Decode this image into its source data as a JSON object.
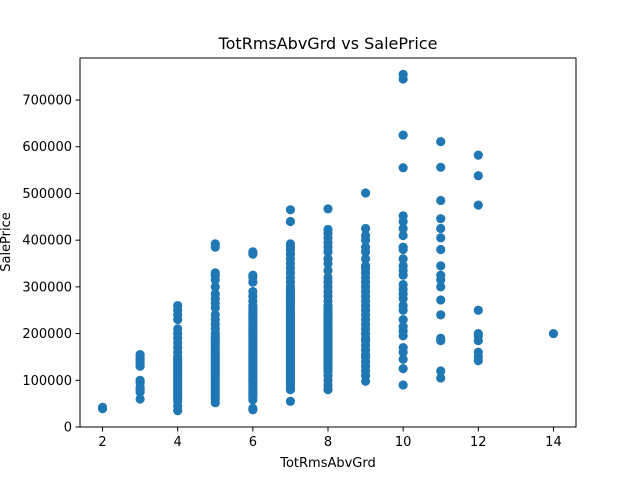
{
  "chart_data": {
    "type": "scatter",
    "title": "TotRmsAbvGrd vs SalePrice",
    "xlabel": "TotRmsAbvGrd",
    "ylabel": "SalePrice",
    "xlim": [
      1.4,
      14.6
    ],
    "ylim": [
      0,
      790000
    ],
    "xticks": [
      2,
      4,
      6,
      8,
      10,
      12,
      14
    ],
    "yticks": [
      0,
      100000,
      200000,
      300000,
      400000,
      500000,
      600000,
      700000
    ],
    "grid": false,
    "marker_color": "#1f77b4",
    "points": [
      [
        2,
        39300
      ],
      [
        2,
        42000
      ],
      [
        3,
        60000
      ],
      [
        3,
        75000
      ],
      [
        3,
        80000
      ],
      [
        3,
        85000
      ],
      [
        3,
        95000
      ],
      [
        3,
        100000
      ],
      [
        3,
        130000
      ],
      [
        3,
        135000
      ],
      [
        3,
        140000
      ],
      [
        3,
        145000
      ],
      [
        3,
        150000
      ],
      [
        3,
        155000
      ],
      [
        4,
        35000
      ],
      [
        4,
        45000
      ],
      [
        4,
        55000
      ],
      [
        4,
        60000
      ],
      [
        4,
        65000
      ],
      [
        4,
        70000
      ],
      [
        4,
        75000
      ],
      [
        4,
        80000
      ],
      [
        4,
        85000
      ],
      [
        4,
        90000
      ],
      [
        4,
        95000
      ],
      [
        4,
        100000
      ],
      [
        4,
        105000
      ],
      [
        4,
        110000
      ],
      [
        4,
        115000
      ],
      [
        4,
        120000
      ],
      [
        4,
        125000
      ],
      [
        4,
        130000
      ],
      [
        4,
        135000
      ],
      [
        4,
        140000
      ],
      [
        4,
        145000
      ],
      [
        4,
        150000
      ],
      [
        4,
        160000
      ],
      [
        4,
        170000
      ],
      [
        4,
        180000
      ],
      [
        4,
        190000
      ],
      [
        4,
        200000
      ],
      [
        4,
        210000
      ],
      [
        4,
        230000
      ],
      [
        4,
        240000
      ],
      [
        4,
        250000
      ],
      [
        4,
        260000
      ],
      [
        5,
        52000
      ],
      [
        5,
        60000
      ],
      [
        5,
        65000
      ],
      [
        5,
        70000
      ],
      [
        5,
        75000
      ],
      [
        5,
        80000
      ],
      [
        5,
        85000
      ],
      [
        5,
        90000
      ],
      [
        5,
        95000
      ],
      [
        5,
        100000
      ],
      [
        5,
        105000
      ],
      [
        5,
        110000
      ],
      [
        5,
        115000
      ],
      [
        5,
        120000
      ],
      [
        5,
        125000
      ],
      [
        5,
        130000
      ],
      [
        5,
        135000
      ],
      [
        5,
        140000
      ],
      [
        5,
        145000
      ],
      [
        5,
        150000
      ],
      [
        5,
        155000
      ],
      [
        5,
        160000
      ],
      [
        5,
        165000
      ],
      [
        5,
        170000
      ],
      [
        5,
        175000
      ],
      [
        5,
        180000
      ],
      [
        5,
        185000
      ],
      [
        5,
        190000
      ],
      [
        5,
        195000
      ],
      [
        5,
        200000
      ],
      [
        5,
        210000
      ],
      [
        5,
        220000
      ],
      [
        5,
        230000
      ],
      [
        5,
        240000
      ],
      [
        5,
        255000
      ],
      [
        5,
        265000
      ],
      [
        5,
        275000
      ],
      [
        5,
        285000
      ],
      [
        5,
        300000
      ],
      [
        5,
        315000
      ],
      [
        5,
        325000
      ],
      [
        5,
        330000
      ],
      [
        5,
        385000
      ],
      [
        5,
        392000
      ],
      [
        6,
        37000
      ],
      [
        6,
        40000
      ],
      [
        6,
        58000
      ],
      [
        6,
        65000
      ],
      [
        6,
        70000
      ],
      [
        6,
        75000
      ],
      [
        6,
        80000
      ],
      [
        6,
        85000
      ],
      [
        6,
        90000
      ],
      [
        6,
        95000
      ],
      [
        6,
        100000
      ],
      [
        6,
        105000
      ],
      [
        6,
        110000
      ],
      [
        6,
        115000
      ],
      [
        6,
        120000
      ],
      [
        6,
        125000
      ],
      [
        6,
        130000
      ],
      [
        6,
        135000
      ],
      [
        6,
        140000
      ],
      [
        6,
        145000
      ],
      [
        6,
        150000
      ],
      [
        6,
        155000
      ],
      [
        6,
        160000
      ],
      [
        6,
        165000
      ],
      [
        6,
        170000
      ],
      [
        6,
        175000
      ],
      [
        6,
        180000
      ],
      [
        6,
        185000
      ],
      [
        6,
        190000
      ],
      [
        6,
        195000
      ],
      [
        6,
        200000
      ],
      [
        6,
        205000
      ],
      [
        6,
        210000
      ],
      [
        6,
        215000
      ],
      [
        6,
        220000
      ],
      [
        6,
        225000
      ],
      [
        6,
        230000
      ],
      [
        6,
        235000
      ],
      [
        6,
        240000
      ],
      [
        6,
        245000
      ],
      [
        6,
        250000
      ],
      [
        6,
        255000
      ],
      [
        6,
        260000
      ],
      [
        6,
        270000
      ],
      [
        6,
        280000
      ],
      [
        6,
        290000
      ],
      [
        6,
        310000
      ],
      [
        6,
        320000
      ],
      [
        6,
        325000
      ],
      [
        6,
        370000
      ],
      [
        6,
        375000
      ],
      [
        7,
        55000
      ],
      [
        7,
        80000
      ],
      [
        7,
        85000
      ],
      [
        7,
        90000
      ],
      [
        7,
        95000
      ],
      [
        7,
        100000
      ],
      [
        7,
        105000
      ],
      [
        7,
        110000
      ],
      [
        7,
        115000
      ],
      [
        7,
        120000
      ],
      [
        7,
        125000
      ],
      [
        7,
        130000
      ],
      [
        7,
        135000
      ],
      [
        7,
        140000
      ],
      [
        7,
        145000
      ],
      [
        7,
        150000
      ],
      [
        7,
        155000
      ],
      [
        7,
        160000
      ],
      [
        7,
        165000
      ],
      [
        7,
        170000
      ],
      [
        7,
        175000
      ],
      [
        7,
        180000
      ],
      [
        7,
        185000
      ],
      [
        7,
        190000
      ],
      [
        7,
        195000
      ],
      [
        7,
        200000
      ],
      [
        7,
        205000
      ],
      [
        7,
        210000
      ],
      [
        7,
        215000
      ],
      [
        7,
        220000
      ],
      [
        7,
        225000
      ],
      [
        7,
        230000
      ],
      [
        7,
        235000
      ],
      [
        7,
        240000
      ],
      [
        7,
        245000
      ],
      [
        7,
        250000
      ],
      [
        7,
        255000
      ],
      [
        7,
        260000
      ],
      [
        7,
        265000
      ],
      [
        7,
        270000
      ],
      [
        7,
        275000
      ],
      [
        7,
        280000
      ],
      [
        7,
        285000
      ],
      [
        7,
        290000
      ],
      [
        7,
        295000
      ],
      [
        7,
        300000
      ],
      [
        7,
        310000
      ],
      [
        7,
        320000
      ],
      [
        7,
        330000
      ],
      [
        7,
        340000
      ],
      [
        7,
        350000
      ],
      [
        7,
        360000
      ],
      [
        7,
        370000
      ],
      [
        7,
        380000
      ],
      [
        7,
        385000
      ],
      [
        7,
        392000
      ],
      [
        7,
        440000
      ],
      [
        7,
        465000
      ],
      [
        8,
        80000
      ],
      [
        8,
        90000
      ],
      [
        8,
        100000
      ],
      [
        8,
        110000
      ],
      [
        8,
        120000
      ],
      [
        8,
        125000
      ],
      [
        8,
        130000
      ],
      [
        8,
        135000
      ],
      [
        8,
        140000
      ],
      [
        8,
        145000
      ],
      [
        8,
        150000
      ],
      [
        8,
        155000
      ],
      [
        8,
        160000
      ],
      [
        8,
        165000
      ],
      [
        8,
        170000
      ],
      [
        8,
        175000
      ],
      [
        8,
        180000
      ],
      [
        8,
        185000
      ],
      [
        8,
        190000
      ],
      [
        8,
        195000
      ],
      [
        8,
        200000
      ],
      [
        8,
        205000
      ],
      [
        8,
        210000
      ],
      [
        8,
        215000
      ],
      [
        8,
        220000
      ],
      [
        8,
        225000
      ],
      [
        8,
        230000
      ],
      [
        8,
        235000
      ],
      [
        8,
        240000
      ],
      [
        8,
        245000
      ],
      [
        8,
        250000
      ],
      [
        8,
        255000
      ],
      [
        8,
        260000
      ],
      [
        8,
        270000
      ],
      [
        8,
        280000
      ],
      [
        8,
        290000
      ],
      [
        8,
        300000
      ],
      [
        8,
        310000
      ],
      [
        8,
        320000
      ],
      [
        8,
        335000
      ],
      [
        8,
        350000
      ],
      [
        8,
        360000
      ],
      [
        8,
        375000
      ],
      [
        8,
        385000
      ],
      [
        8,
        395000
      ],
      [
        8,
        405000
      ],
      [
        8,
        415000
      ],
      [
        8,
        423000
      ],
      [
        8,
        467000
      ],
      [
        9,
        98000
      ],
      [
        9,
        110000
      ],
      [
        9,
        120000
      ],
      [
        9,
        130000
      ],
      [
        9,
        140000
      ],
      [
        9,
        150000
      ],
      [
        9,
        155000
      ],
      [
        9,
        165000
      ],
      [
        9,
        175000
      ],
      [
        9,
        185000
      ],
      [
        9,
        190000
      ],
      [
        9,
        200000
      ],
      [
        9,
        210000
      ],
      [
        9,
        220000
      ],
      [
        9,
        230000
      ],
      [
        9,
        240000
      ],
      [
        9,
        250000
      ],
      [
        9,
        260000
      ],
      [
        9,
        270000
      ],
      [
        9,
        280000
      ],
      [
        9,
        290000
      ],
      [
        9,
        300000
      ],
      [
        9,
        310000
      ],
      [
        9,
        320000
      ],
      [
        9,
        330000
      ],
      [
        9,
        340000
      ],
      [
        9,
        345000
      ],
      [
        9,
        360000
      ],
      [
        9,
        375000
      ],
      [
        9,
        385000
      ],
      [
        9,
        400000
      ],
      [
        9,
        410000
      ],
      [
        9,
        425000
      ],
      [
        9,
        501000
      ],
      [
        10,
        90000
      ],
      [
        10,
        125000
      ],
      [
        10,
        145000
      ],
      [
        10,
        160000
      ],
      [
        10,
        170000
      ],
      [
        10,
        195000
      ],
      [
        10,
        205000
      ],
      [
        10,
        215000
      ],
      [
        10,
        230000
      ],
      [
        10,
        250000
      ],
      [
        10,
        260000
      ],
      [
        10,
        275000
      ],
      [
        10,
        285000
      ],
      [
        10,
        295000
      ],
      [
        10,
        305000
      ],
      [
        10,
        325000
      ],
      [
        10,
        335000
      ],
      [
        10,
        345000
      ],
      [
        10,
        360000
      ],
      [
        10,
        380000
      ],
      [
        10,
        385000
      ],
      [
        10,
        410000
      ],
      [
        10,
        425000
      ],
      [
        10,
        440000
      ],
      [
        10,
        452000
      ],
      [
        10,
        555000
      ],
      [
        10,
        625000
      ],
      [
        10,
        745000
      ],
      [
        10,
        755000
      ],
      [
        11,
        105000
      ],
      [
        11,
        120000
      ],
      [
        11,
        185000
      ],
      [
        11,
        190000
      ],
      [
        11,
        240000
      ],
      [
        11,
        272000
      ],
      [
        11,
        300000
      ],
      [
        11,
        315000
      ],
      [
        11,
        325000
      ],
      [
        11,
        345000
      ],
      [
        11,
        380000
      ],
      [
        11,
        405000
      ],
      [
        11,
        425000
      ],
      [
        11,
        446000
      ],
      [
        11,
        485000
      ],
      [
        11,
        556000
      ],
      [
        11,
        611000
      ],
      [
        12,
        142000
      ],
      [
        12,
        150000
      ],
      [
        12,
        160000
      ],
      [
        12,
        185000
      ],
      [
        12,
        195000
      ],
      [
        12,
        200000
      ],
      [
        12,
        250000
      ],
      [
        12,
        475000
      ],
      [
        12,
        538000
      ],
      [
        12,
        582000
      ],
      [
        14,
        200000
      ]
    ]
  }
}
